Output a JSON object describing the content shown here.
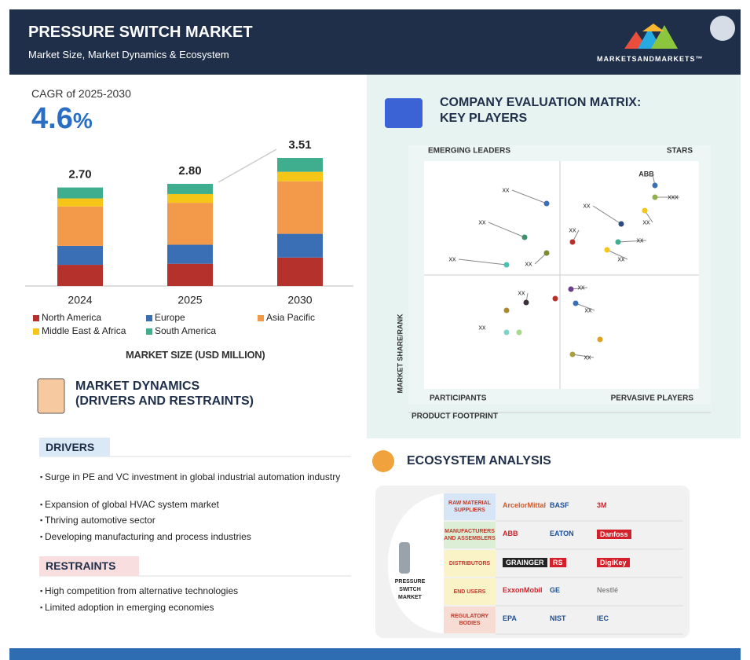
{
  "header": {
    "title": "PRESSURE SWITCH MARKET",
    "subtitle": "Market Size, Market Dynamics & Ecosystem",
    "logo": "MARKETSANDMARKETS™"
  },
  "cagr": {
    "label": "CAGR of 2025-2030",
    "value": 4.6,
    "unit": "%"
  },
  "chart_data": {
    "type": "stacked_bar",
    "caption": "MARKET SIZE (USD MILLION)",
    "categories": [
      "2024",
      "2025",
      "2030"
    ],
    "series": [
      {
        "name": "North America",
        "color": "#b5312c",
        "values": [
          0.58,
          0.61,
          0.78
        ]
      },
      {
        "name": "Europe",
        "color": "#3a6fb5",
        "values": [
          0.52,
          0.52,
          0.65
        ]
      },
      {
        "name": "Asia Pacific",
        "color": "#f39a4a",
        "values": [
          1.08,
          1.15,
          1.44
        ]
      },
      {
        "name": "Middle East & Africa",
        "color": "#f5c518",
        "values": [
          0.22,
          0.24,
          0.26
        ]
      },
      {
        "name": "South America",
        "color": "#3fae8e",
        "values": [
          0.3,
          0.28,
          0.38
        ]
      }
    ],
    "totals": [
      2.7,
      2.8,
      3.51
    ],
    "total_labels": [
      "2.70",
      "2.80",
      "3.51"
    ]
  },
  "dynamics": {
    "title_1": "MARKET DYNAMICS",
    "title_2": "(DRIVERS AND RESTRAINTS)",
    "drivers_title": "DRIVERS",
    "drivers": [
      "Surge in PE and VC investment in global industrial automation industry",
      "Expansion of global HVAC system market",
      "Thriving automotive sector",
      "Developing manufacturing and process industries"
    ],
    "restraints_title": "RESTRAINTS",
    "restraints": [
      "High competition from alternative technologies",
      "Limited adoption in emerging economies"
    ]
  },
  "matrix": {
    "title_1": "COMPANY EVALUATION MATRIX:",
    "title_2": "KEY PLAYERS",
    "quadrants": [
      "EMERGING LEADERS",
      "STARS",
      "PARTICIPANTS",
      "PERVASIVE PLAYERS"
    ],
    "y_label": "MARKET SHARE/RANK",
    "x_label": "PRODUCT FOOTPRINT",
    "point_labels": [
      "xx",
      "xx",
      "xx",
      "xx",
      "xx",
      "xx",
      "ABB",
      "xxx",
      "xx",
      "xx",
      "xx",
      "xx",
      "xx",
      "xx",
      "xx",
      "xx"
    ]
  },
  "ecosystem": {
    "title": "ECOSYSTEM ANALYSIS",
    "center": "PRESSURE SWITCH MARKET",
    "rows": [
      {
        "label": "RAW MATERIAL SUPPLIERS",
        "companies": [
          "ArcelorMittal",
          "BASF",
          "3M"
        ]
      },
      {
        "label": "MANUFACTURERS AND ASSEMBLERS",
        "companies": [
          "ABB",
          "EATON",
          "Danfoss"
        ]
      },
      {
        "label": "DISTRIBUTORS",
        "companies": [
          "GRAINGER",
          "RS",
          "DigiKey"
        ]
      },
      {
        "label": "END USERS",
        "companies": [
          "ExxonMobil",
          "GE",
          "Nestlé"
        ]
      },
      {
        "label": "REGULATORY BODIES",
        "companies": [
          "EPA",
          "NIST",
          "IEC"
        ]
      }
    ]
  }
}
